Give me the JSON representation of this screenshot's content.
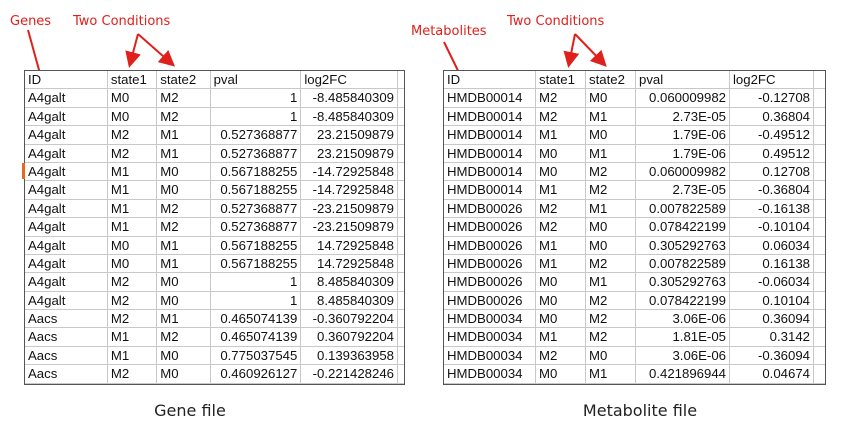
{
  "annotations": {
    "genes": "Genes",
    "two_conditions_gene": "Two Conditions",
    "metabolites": "Metabolites",
    "two_conditions_metabolite": "Two Conditions"
  },
  "gene_table": {
    "headers": [
      "ID",
      "state1",
      "state2",
      "pval",
      "log2FC"
    ],
    "rows": [
      [
        "A4galt",
        "M0",
        "M2",
        "1",
        "-8.485840309"
      ],
      [
        "A4galt",
        "M0",
        "M2",
        "1",
        "-8.485840309"
      ],
      [
        "A4galt",
        "M2",
        "M1",
        "0.527368877",
        "23.21509879"
      ],
      [
        "A4galt",
        "M2",
        "M1",
        "0.527368877",
        "23.21509879"
      ],
      [
        "A4galt",
        "M1",
        "M0",
        "0.567188255",
        "-14.72925848"
      ],
      [
        "A4galt",
        "M1",
        "M0",
        "0.567188255",
        "-14.72925848"
      ],
      [
        "A4galt",
        "M1",
        "M2",
        "0.527368877",
        "-23.21509879"
      ],
      [
        "A4galt",
        "M1",
        "M2",
        "0.527368877",
        "-23.21509879"
      ],
      [
        "A4galt",
        "M0",
        "M1",
        "0.567188255",
        "14.72925848"
      ],
      [
        "A4galt",
        "M0",
        "M1",
        "0.567188255",
        "14.72925848"
      ],
      [
        "A4galt",
        "M2",
        "M0",
        "1",
        "8.485840309"
      ],
      [
        "A4galt",
        "M2",
        "M0",
        "1",
        "8.485840309"
      ],
      [
        "Aacs",
        "M2",
        "M1",
        "0.465074139",
        "-0.360792204"
      ],
      [
        "Aacs",
        "M1",
        "M2",
        "0.465074139",
        "0.360792204"
      ],
      [
        "Aacs",
        "M1",
        "M0",
        "0.775037545",
        "0.139363958"
      ],
      [
        "Aacs",
        "M2",
        "M0",
        "0.460926127",
        "-0.221428246"
      ]
    ]
  },
  "metabolite_table": {
    "headers": [
      "ID",
      "state1",
      "state2",
      "pval",
      "log2FC"
    ],
    "rows": [
      [
        "HMDB00014",
        "M2",
        "M0",
        "0.060009982",
        "-0.12708"
      ],
      [
        "HMDB00014",
        "M2",
        "M1",
        "2.73E-05",
        "0.36804"
      ],
      [
        "HMDB00014",
        "M1",
        "M0",
        "1.79E-06",
        "-0.49512"
      ],
      [
        "HMDB00014",
        "M0",
        "M1",
        "1.79E-06",
        "0.49512"
      ],
      [
        "HMDB00014",
        "M0",
        "M2",
        "0.060009982",
        "0.12708"
      ],
      [
        "HMDB00014",
        "M1",
        "M2",
        "2.73E-05",
        "-0.36804"
      ],
      [
        "HMDB00026",
        "M2",
        "M1",
        "0.007822589",
        "-0.16138"
      ],
      [
        "HMDB00026",
        "M2",
        "M0",
        "0.078422199",
        "-0.10104"
      ],
      [
        "HMDB00026",
        "M1",
        "M0",
        "0.305292763",
        "0.06034"
      ],
      [
        "HMDB00026",
        "M1",
        "M2",
        "0.007822589",
        "0.16138"
      ],
      [
        "HMDB00026",
        "M0",
        "M1",
        "0.305292763",
        "-0.06034"
      ],
      [
        "HMDB00026",
        "M0",
        "M2",
        "0.078422199",
        "0.10104"
      ],
      [
        "HMDB00034",
        "M0",
        "M2",
        "3.06E-06",
        "0.36094"
      ],
      [
        "HMDB00034",
        "M1",
        "M2",
        "1.81E-05",
        "0.3142"
      ],
      [
        "HMDB00034",
        "M2",
        "M0",
        "3.06E-06",
        "-0.36094"
      ],
      [
        "HMDB00034",
        "M0",
        "M1",
        "0.421896944",
        "0.04674"
      ]
    ]
  },
  "captions": {
    "gene": "Gene file",
    "metabolite": "Metabolite file"
  },
  "colors": {
    "annotation": "#e0201b",
    "row_marker": "#e86a1a"
  }
}
